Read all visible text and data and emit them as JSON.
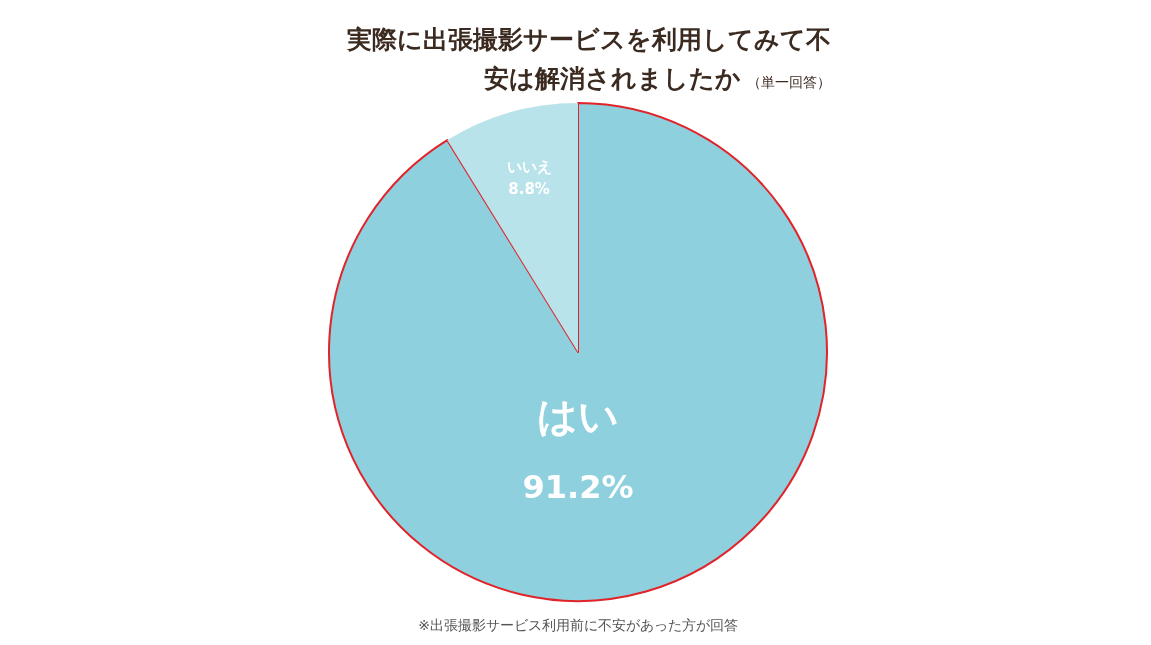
{
  "chart_data": {
    "type": "pie",
    "title": "実際に出張撮影サービスを利用してみて不安は解消されましたか",
    "subtitle": "（単一回答）",
    "categories": [
      "はい",
      "いいえ"
    ],
    "values": [
      91.2,
      8.8
    ],
    "value_labels": [
      "91.2%",
      "8.8%"
    ],
    "colors": [
      "#8fd0de",
      "#b9e3eb"
    ],
    "annotations": [
      "※出張撮影サービス利用前に不安があった方が回答"
    ]
  }
}
